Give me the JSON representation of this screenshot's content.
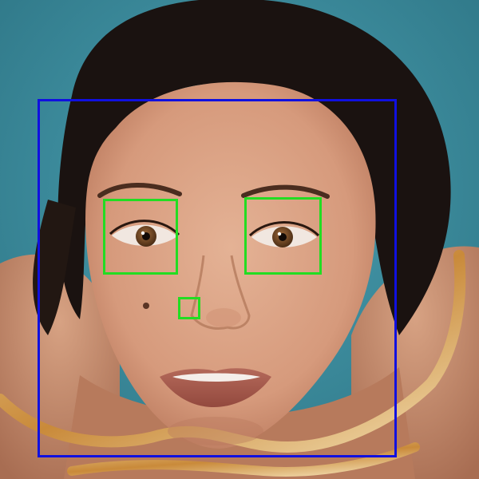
{
  "image": {
    "subject": "woman-face-looking-up",
    "background_color": "#3f8fa0",
    "skin_color": "#d9a184",
    "hair_color": "#1a1210",
    "lip_color": "#a8594c",
    "iris_color": "#6b4322"
  },
  "detections": {
    "face_box_color": "#1010e0",
    "feature_box_color": "#22dd22",
    "face_count": 1,
    "eye_count": 2,
    "nose_count": 1
  }
}
